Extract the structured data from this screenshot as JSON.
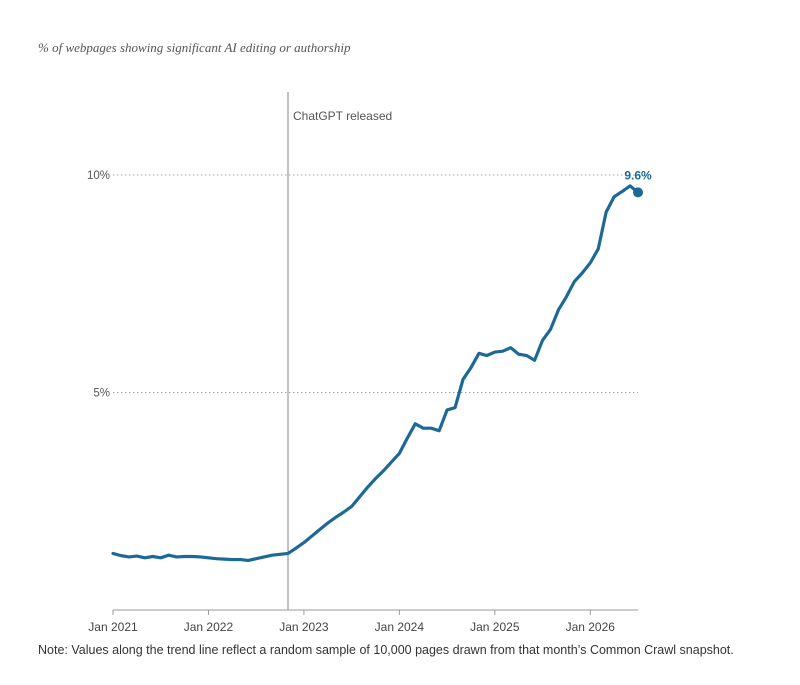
{
  "title": "% of webpages showing significant AI editing or authorship",
  "note": "Note: Values along the trend line reflect a random sample of 10,000 pages drawn from that month’s Common Crawl snapshot.",
  "colors": {
    "line": "#1d6996",
    "axis": "#999999",
    "grid": "#888888",
    "text": "#555555",
    "end_label": "#1d6996"
  },
  "chart_data": {
    "type": "line",
    "title": "% of webpages showing significant AI editing or authorship",
    "xlabel": "",
    "ylabel": "",
    "ylim": [
      0,
      10
    ],
    "xlim": [
      "2021-01",
      "2026-07"
    ],
    "x_ticks": [
      "Jan 2021",
      "Jan 2022",
      "Jan 2023",
      "Jan 2024",
      "Jan 2025",
      "Jan 2026"
    ],
    "y_ticks": [
      {
        "value": 5,
        "label": "5%"
      },
      {
        "value": 10,
        "label": "10%"
      }
    ],
    "grid": "dotted horizontal at y ticks",
    "annotations": [
      {
        "type": "vline",
        "x": "2022-11",
        "label": "ChatGPT released"
      },
      {
        "type": "end_point",
        "x": "2026-07",
        "y": 9.6,
        "label": "9.6%"
      }
    ],
    "series": [
      {
        "values": [
          [
            "2021-01",
            1.3
          ],
          [
            "2021-02",
            1.25
          ],
          [
            "2021-03",
            1.22
          ],
          [
            "2021-04",
            1.24
          ],
          [
            "2021-05",
            1.2
          ],
          [
            "2021-06",
            1.23
          ],
          [
            "2021-07",
            1.2
          ],
          [
            "2021-08",
            1.26
          ],
          [
            "2021-09",
            1.22
          ],
          [
            "2021-10",
            1.23
          ],
          [
            "2021-11",
            1.23
          ],
          [
            "2021-12",
            1.22
          ],
          [
            "2022-01",
            1.2
          ],
          [
            "2022-02",
            1.18
          ],
          [
            "2022-03",
            1.17
          ],
          [
            "2022-04",
            1.16
          ],
          [
            "2022-05",
            1.16
          ],
          [
            "2022-06",
            1.14
          ],
          [
            "2022-07",
            1.18
          ],
          [
            "2022-08",
            1.22
          ],
          [
            "2022-09",
            1.26
          ],
          [
            "2022-10",
            1.28
          ],
          [
            "2022-11",
            1.3
          ],
          [
            "2022-12",
            1.42
          ],
          [
            "2023-01",
            1.55
          ],
          [
            "2023-02",
            1.7
          ],
          [
            "2023-03",
            1.85
          ],
          [
            "2023-04",
            2.0
          ],
          [
            "2023-05",
            2.13
          ],
          [
            "2023-06",
            2.25
          ],
          [
            "2023-07",
            2.38
          ],
          [
            "2023-08",
            2.6
          ],
          [
            "2023-09",
            2.82
          ],
          [
            "2023-10",
            3.02
          ],
          [
            "2023-11",
            3.2
          ],
          [
            "2023-12",
            3.4
          ],
          [
            "2024-01",
            3.6
          ],
          [
            "2024-02",
            3.95
          ],
          [
            "2024-03",
            4.28
          ],
          [
            "2024-04",
            4.18
          ],
          [
            "2024-05",
            4.18
          ],
          [
            "2024-06",
            4.12
          ],
          [
            "2024-07",
            4.6
          ],
          [
            "2024-08",
            4.65
          ],
          [
            "2024-09",
            5.3
          ],
          [
            "2024-10",
            5.57
          ],
          [
            "2024-11",
            5.9
          ],
          [
            "2024-12",
            5.85
          ],
          [
            "2025-01",
            5.93
          ],
          [
            "2025-02",
            5.95
          ],
          [
            "2025-03",
            6.03
          ],
          [
            "2025-04",
            5.88
          ],
          [
            "2025-05",
            5.85
          ],
          [
            "2025-06",
            5.74
          ],
          [
            "2025-07",
            6.2
          ],
          [
            "2025-08",
            6.45
          ],
          [
            "2025-09",
            6.9
          ],
          [
            "2025-10",
            7.2
          ],
          [
            "2025-11",
            7.55
          ],
          [
            "2025-12",
            7.75
          ],
          [
            "2026-01",
            7.98
          ],
          [
            "2026-02",
            8.3
          ],
          [
            "2026-03",
            9.15
          ],
          [
            "2026-04",
            9.5
          ],
          [
            "2026-05",
            9.62
          ],
          [
            "2026-06",
            9.75
          ],
          [
            "2026-07",
            9.6
          ]
        ]
      }
    ]
  }
}
